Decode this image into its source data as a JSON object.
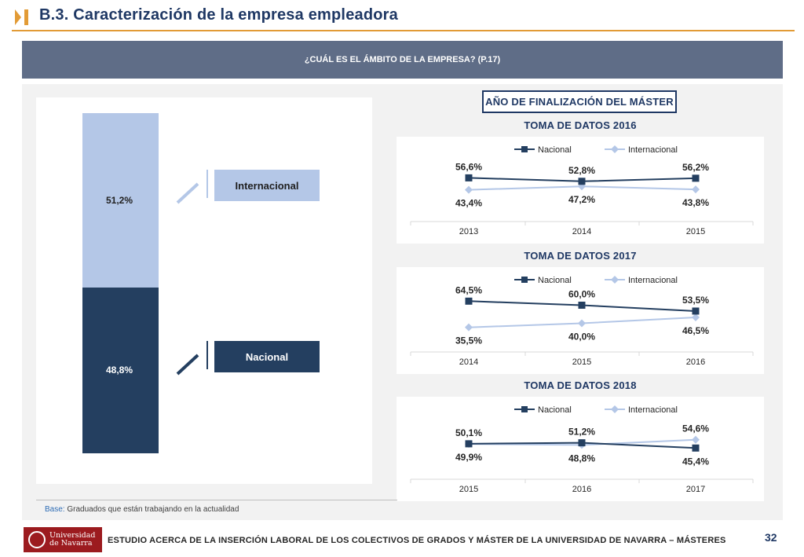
{
  "header": {
    "title": "B.3. Caracterización de la empresa empleadora",
    "accent_color": "#e29b36",
    "icon": "chevron-bar-icon"
  },
  "question": "¿CUÁL ES EL ÁMBITO DE LA EMPRESA? (P.17)",
  "stacked": {
    "internacional_label": "Internacional",
    "nacional_label": "Nacional",
    "internacional_value": "51,2%",
    "nacional_value": "48,8%",
    "colors": {
      "internacional": "#b4c7e7",
      "nacional": "#243f60"
    }
  },
  "year_section_title": "AÑO DE FINALIZACIÓN DEL MÁSTER",
  "chart_data": [
    {
      "type": "bar",
      "stacked": true,
      "categories": [
        ""
      ],
      "series": [
        {
          "name": "Nacional",
          "values": [
            48.8
          ],
          "labels": [
            "48,8%"
          ]
        },
        {
          "name": "Internacional",
          "values": [
            51.2
          ],
          "labels": [
            "51,2%"
          ]
        }
      ],
      "ylim": [
        0,
        100
      ]
    },
    {
      "type": "line",
      "title": "TOMA DE DATOS 2016",
      "categories": [
        "2013",
        "2014",
        "2015"
      ],
      "series": [
        {
          "name": "Nacional",
          "values": [
            56.6,
            52.8,
            56.2
          ],
          "labels": [
            "56,6%",
            "52,8%",
            "56,2%"
          ]
        },
        {
          "name": "Internacional",
          "values": [
            43.4,
            47.2,
            43.8
          ],
          "labels": [
            "43,4%",
            "47,2%",
            "43,8%"
          ]
        }
      ],
      "legend": "top"
    },
    {
      "type": "line",
      "title": "TOMA DE DATOS 2017",
      "categories": [
        "2014",
        "2015",
        "2016"
      ],
      "series": [
        {
          "name": "Nacional",
          "values": [
            64.5,
            60.0,
            53.5
          ],
          "labels": [
            "64,5%",
            "60,0%",
            "53,5%"
          ]
        },
        {
          "name": "Internacional",
          "values": [
            35.5,
            40.0,
            46.5
          ],
          "labels": [
            "35,5%",
            "40,0%",
            "46,5%"
          ]
        }
      ],
      "legend": "top"
    },
    {
      "type": "line",
      "title": "TOMA DE DATOS 2018",
      "categories": [
        "2015",
        "2016",
        "2017"
      ],
      "series": [
        {
          "name": "Nacional",
          "values": [
            50.1,
            51.2,
            45.4
          ],
          "labels": [
            "50,1%",
            "51,2%",
            "45,4%"
          ]
        },
        {
          "name": "Internacional",
          "values": [
            49.9,
            48.8,
            54.6
          ],
          "labels": [
            "49,9%",
            "48,8%",
            "54,6%"
          ]
        }
      ],
      "legend": "top"
    }
  ],
  "base": {
    "label": "Base:",
    "text": " Graduados que están trabajando en la actualidad"
  },
  "footer": {
    "logo_line1": "Universidad",
    "logo_line2": "de Navarra",
    "text": "ESTUDIO ACERCA DE LA INSERCIÓN LABORAL DE LOS COLECTIVOS DE GRADOS Y MÁSTER DE LA UNIVERSIDAD DE NAVARRA – MÁSTERES",
    "page_number": "32"
  }
}
